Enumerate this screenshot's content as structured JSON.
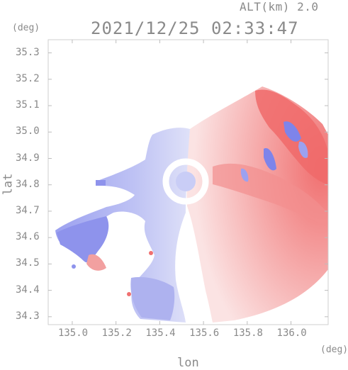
{
  "header": {
    "altitude": "ALT(km) 2.0",
    "datetime": "2021/12/25 02:33:47"
  },
  "axes": {
    "y_unit": "(deg)",
    "x_unit": "(deg)",
    "y_title": "lat",
    "x_title": "lon",
    "y_ticks": [
      "35.3",
      "35.2",
      "35.1",
      "35.0",
      "34.9",
      "34.8",
      "34.7",
      "34.6",
      "34.5",
      "34.4",
      "34.3"
    ],
    "x_ticks": [
      "135.0",
      "135.2",
      "135.4",
      "135.6",
      "135.8",
      "136.0"
    ]
  },
  "chart_data": {
    "type": "heatmap",
    "xlim": [
      134.89,
      136.17
    ],
    "ylim": [
      34.27,
      35.35
    ],
    "grid": false,
    "colors": {
      "approaching": "#8a8ff0",
      "approaching_light": "#c9cdf6",
      "receding": "#f07a7a",
      "receding_light": "#f7c9c9",
      "neutral": "#ffffff"
    }
  }
}
